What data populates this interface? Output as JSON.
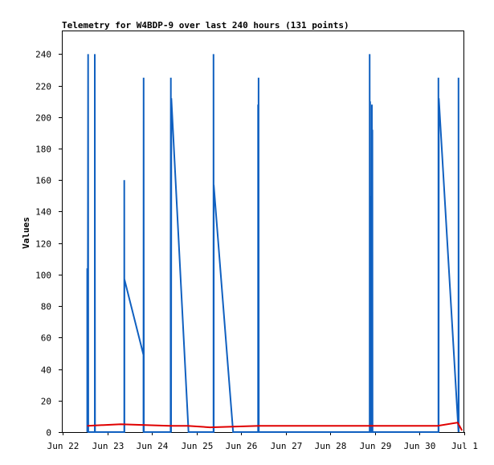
{
  "chart_data": {
    "type": "line",
    "title": "Telemetry for W4BDP-9 over last 240 hours (131 points)",
    "xlabel": "",
    "ylabel": "Values",
    "ylim": [
      0,
      255
    ],
    "xlim": [
      0,
      9
    ],
    "y_ticks": [
      0,
      20,
      40,
      60,
      80,
      100,
      120,
      140,
      160,
      180,
      200,
      220,
      240
    ],
    "x_ticks": [
      {
        "x": 0,
        "label": "Jun 22"
      },
      {
        "x": 1,
        "label": "Jun 23"
      },
      {
        "x": 2,
        "label": "Jun 24"
      },
      {
        "x": 3,
        "label": "Jun 25"
      },
      {
        "x": 4,
        "label": "Jun 26"
      },
      {
        "x": 5,
        "label": "Jun 27"
      },
      {
        "x": 6,
        "label": "Jun 28"
      },
      {
        "x": 7,
        "label": "Jun 29"
      },
      {
        "x": 8,
        "label": "Jun 30"
      },
      {
        "x": 9,
        "label": "Jul 1"
      }
    ],
    "grid": false,
    "series": [
      {
        "color": "#1060c0",
        "points": [
          [
            0.55,
            0
          ],
          [
            0.55,
            104
          ],
          [
            0.56,
            0
          ],
          [
            0.57,
            240
          ],
          [
            0.575,
            0
          ],
          [
            0.72,
            0
          ],
          [
            0.72,
            240
          ],
          [
            0.725,
            0
          ],
          [
            1.38,
            0
          ],
          [
            1.38,
            160
          ],
          [
            1.385,
            0
          ],
          [
            1.385,
            97
          ],
          [
            1.81,
            49
          ],
          [
            1.81,
            0
          ],
          [
            1.815,
            225
          ],
          [
            1.82,
            0
          ],
          [
            2.42,
            0
          ],
          [
            2.42,
            104
          ],
          [
            2.425,
            225
          ],
          [
            2.43,
            0
          ],
          [
            2.435,
            212
          ],
          [
            2.82,
            0
          ],
          [
            3.38,
            0
          ],
          [
            3.38,
            240
          ],
          [
            3.385,
            0
          ],
          [
            3.385,
            157
          ],
          [
            3.82,
            0
          ],
          [
            4.38,
            0
          ],
          [
            4.38,
            208
          ],
          [
            4.385,
            0
          ],
          [
            4.39,
            225
          ],
          [
            4.395,
            0
          ],
          [
            6.88,
            0
          ],
          [
            6.88,
            240
          ],
          [
            6.885,
            0
          ],
          [
            6.89,
            210
          ],
          [
            6.895,
            90
          ],
          [
            6.9,
            150
          ],
          [
            6.905,
            0
          ],
          [
            6.93,
            0
          ],
          [
            6.93,
            208
          ],
          [
            6.935,
            0
          ],
          [
            6.94,
            192
          ],
          [
            6.945,
            0
          ],
          [
            8.42,
            0
          ],
          [
            8.42,
            225
          ],
          [
            8.425,
            0
          ],
          [
            8.43,
            212
          ],
          [
            8.87,
            0
          ],
          [
            8.87,
            225
          ],
          [
            8.875,
            0
          ]
        ]
      },
      {
        "color": "#e00000",
        "points": [
          [
            0.55,
            4
          ],
          [
            1.3,
            5
          ],
          [
            2.4,
            4
          ],
          [
            2.8,
            4
          ],
          [
            3.3,
            3
          ],
          [
            4.4,
            4
          ],
          [
            6.9,
            4
          ],
          [
            8.4,
            4
          ],
          [
            8.85,
            6
          ],
          [
            8.95,
            1
          ]
        ]
      }
    ]
  }
}
